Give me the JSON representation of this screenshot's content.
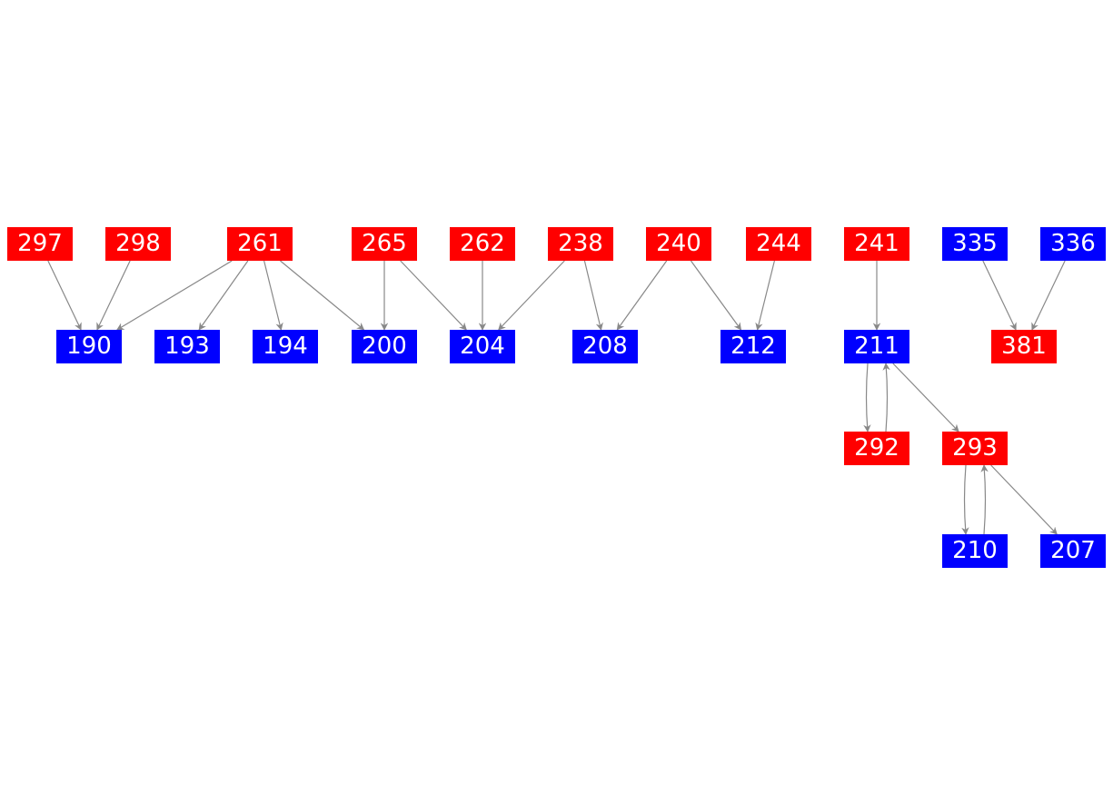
{
  "colors": {
    "red": "#ff0000",
    "blue": "#0000ff",
    "edge": "#888888",
    "label": "#ffffff"
  },
  "nodes": [
    {
      "id": "297",
      "color": "red"
    },
    {
      "id": "298",
      "color": "red"
    },
    {
      "id": "261",
      "color": "red"
    },
    {
      "id": "265",
      "color": "red"
    },
    {
      "id": "262",
      "color": "red"
    },
    {
      "id": "238",
      "color": "red"
    },
    {
      "id": "240",
      "color": "red"
    },
    {
      "id": "244",
      "color": "red"
    },
    {
      "id": "241",
      "color": "red"
    },
    {
      "id": "335",
      "color": "blue"
    },
    {
      "id": "336",
      "color": "blue"
    },
    {
      "id": "190",
      "color": "blue"
    },
    {
      "id": "193",
      "color": "blue"
    },
    {
      "id": "194",
      "color": "blue"
    },
    {
      "id": "200",
      "color": "blue"
    },
    {
      "id": "204",
      "color": "blue"
    },
    {
      "id": "208",
      "color": "blue"
    },
    {
      "id": "212",
      "color": "blue"
    },
    {
      "id": "211",
      "color": "blue"
    },
    {
      "id": "381",
      "color": "red"
    },
    {
      "id": "292",
      "color": "red"
    },
    {
      "id": "293",
      "color": "red"
    },
    {
      "id": "210",
      "color": "blue"
    },
    {
      "id": "207",
      "color": "blue"
    }
  ],
  "edges": [
    [
      "297",
      "190"
    ],
    [
      "298",
      "190"
    ],
    [
      "261",
      "190"
    ],
    [
      "261",
      "193"
    ],
    [
      "261",
      "194"
    ],
    [
      "261",
      "200"
    ],
    [
      "265",
      "200"
    ],
    [
      "265",
      "204"
    ],
    [
      "262",
      "204"
    ],
    [
      "238",
      "204"
    ],
    [
      "238",
      "208"
    ],
    [
      "240",
      "208"
    ],
    [
      "240",
      "212"
    ],
    [
      "244",
      "212"
    ],
    [
      "241",
      "211"
    ],
    [
      "335",
      "381"
    ],
    [
      "336",
      "381"
    ],
    [
      "211",
      "292"
    ],
    [
      "292",
      "211"
    ],
    [
      "211",
      "293"
    ],
    [
      "293",
      "210"
    ],
    [
      "210",
      "293"
    ],
    [
      "293",
      "207"
    ]
  ]
}
